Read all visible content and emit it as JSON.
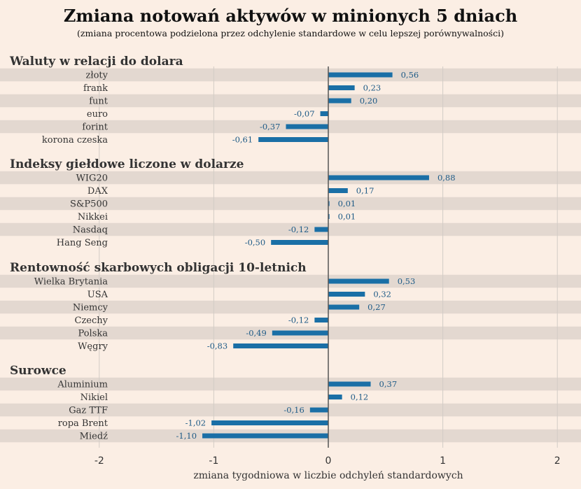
{
  "chart_data": {
    "type": "bar",
    "orientation": "horizontal",
    "title": "Zmiana notowań aktywów w minionych 5 dniach",
    "subtitle": "(zmiana procentowa podzielona przez odchylenie standardowe w celu lepszej porównywalności)",
    "xlabel": "zmiana tygodniowa w liczbie odchyleń standardowych",
    "xlim": [
      -2,
      2
    ],
    "xticks": [
      "-2",
      "-1",
      "0",
      "1",
      "2"
    ],
    "grid": true,
    "colors": {
      "bar": "#1a6fa6",
      "value_label": "#1d5a86",
      "background": "#fbeee4",
      "stripe": "#e3d8d0",
      "zero_line": "#555555"
    },
    "groups": [
      {
        "name": "Waluty w relacji do dolara",
        "items": [
          {
            "label": "złoty",
            "value": 0.56,
            "value_label": "0,56"
          },
          {
            "label": "frank",
            "value": 0.23,
            "value_label": "0,23"
          },
          {
            "label": "funt",
            "value": 0.2,
            "value_label": "0,20"
          },
          {
            "label": "euro",
            "value": -0.07,
            "value_label": "-0,07"
          },
          {
            "label": "forint",
            "value": -0.37,
            "value_label": "-0,37"
          },
          {
            "label": "korona czeska",
            "value": -0.61,
            "value_label": "-0,61"
          }
        ]
      },
      {
        "name": "Indeksy giełdowe liczone w dolarze",
        "items": [
          {
            "label": "WIG20",
            "value": 0.88,
            "value_label": "0,88"
          },
          {
            "label": "DAX",
            "value": 0.17,
            "value_label": "0,17"
          },
          {
            "label": "S&P500",
            "value": 0.01,
            "value_label": "0,01"
          },
          {
            "label": "Nikkei",
            "value": 0.01,
            "value_label": "0,01"
          },
          {
            "label": "Nasdaq",
            "value": -0.12,
            "value_label": "-0,12"
          },
          {
            "label": "Hang Seng",
            "value": -0.5,
            "value_label": "-0,50"
          }
        ]
      },
      {
        "name": "Rentowność skarbowych obligacji 10-letnich",
        "items": [
          {
            "label": "Wielka Brytania",
            "value": 0.53,
            "value_label": "0,53"
          },
          {
            "label": "USA",
            "value": 0.32,
            "value_label": "0,32"
          },
          {
            "label": "Niemcy",
            "value": 0.27,
            "value_label": "0,27"
          },
          {
            "label": "Czechy",
            "value": -0.12,
            "value_label": "-0,12"
          },
          {
            "label": "Polska",
            "value": -0.49,
            "value_label": "-0,49"
          },
          {
            "label": "Węgry",
            "value": -0.83,
            "value_label": "-0,83"
          }
        ]
      },
      {
        "name": "Surowce",
        "items": [
          {
            "label": "Aluminium",
            "value": 0.37,
            "value_label": "0,37"
          },
          {
            "label": "Nikiel",
            "value": 0.12,
            "value_label": "0,12"
          },
          {
            "label": "Gaz TTF",
            "value": -0.16,
            "value_label": "-0,16"
          },
          {
            "label": "ropa Brent",
            "value": -1.02,
            "value_label": "-1,02"
          },
          {
            "label": "Miedź",
            "value": -1.1,
            "value_label": "-1,10"
          }
        ]
      }
    ]
  }
}
